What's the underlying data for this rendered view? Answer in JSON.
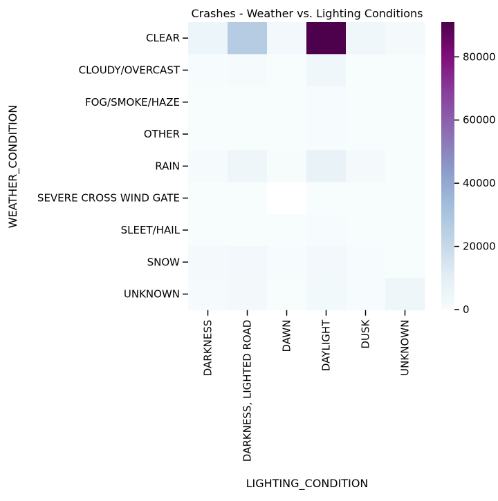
{
  "chart_data": {
    "type": "heatmap",
    "title": "Crashes - Weather vs. Lighting Conditions",
    "xlabel": "LIGHTING_CONDITION",
    "ylabel": "WEATHER_CONDITION",
    "x_categories": [
      "DARKNESS",
      "DARKNESS, LIGHTED ROAD",
      "DAWN",
      "DAYLIGHT",
      "DUSK",
      "UNKNOWN"
    ],
    "y_categories": [
      "CLEAR",
      "CLOUDY/OVERCAST",
      "FOG/SMOKE/HAZE",
      "OTHER",
      "RAIN",
      "SEVERE CROSS WIND GATE",
      "SLEET/HAIL",
      "SNOW",
      "UNKNOWN"
    ],
    "values": [
      [
        5200,
        26000,
        2600,
        91000,
        3600,
        1600
      ],
      [
        300,
        1100,
        150,
        3300,
        200,
        80
      ],
      [
        60,
        120,
        30,
        300,
        40,
        20
      ],
      [
        80,
        180,
        40,
        400,
        50,
        60
      ],
      [
        1100,
        4500,
        700,
        7000,
        1500,
        200
      ],
      [
        2,
        4,
        null,
        10,
        2,
        1
      ],
      [
        60,
        200,
        40,
        350,
        50,
        20
      ],
      [
        1300,
        2600,
        300,
        2700,
        400,
        150
      ],
      [
        1200,
        1900,
        200,
        2300,
        300,
        4600
      ]
    ],
    "colorbar": {
      "min": 0,
      "max": 91000,
      "ticks": [
        0,
        20000,
        40000,
        60000,
        80000
      ],
      "tick_labels": [
        "0",
        "20000",
        "40000",
        "60000",
        "80000"
      ],
      "colormap": "BuPu",
      "stops": [
        "#f7fcfd",
        "#e0ecf4",
        "#bfd3e6",
        "#9ebcda",
        "#8c96c6",
        "#8c6bb1",
        "#88419d",
        "#810f7c",
        "#4d004b"
      ]
    },
    "grid": false,
    "missing_cell_color": "#ffffff"
  }
}
